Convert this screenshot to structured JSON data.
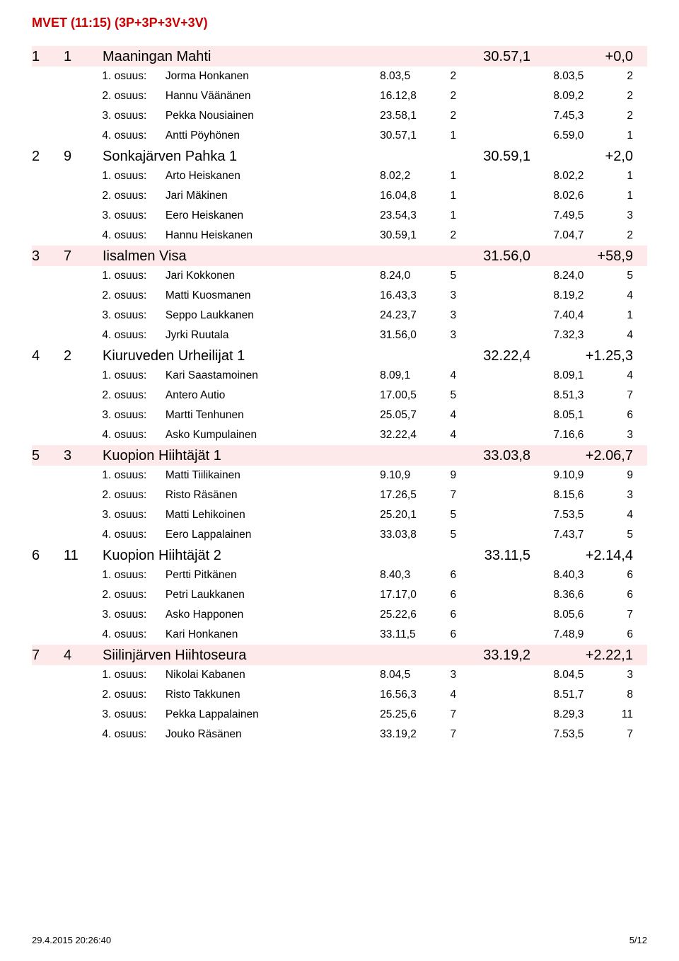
{
  "title": "MVET (11:15)  (3P+3P+3V+3V)",
  "colors": {
    "title": "#cc0000",
    "shade": "#fde9e9",
    "text": "#000000",
    "background": "#ffffff"
  },
  "teams": [
    {
      "rank": "1",
      "bib": "1",
      "name": "Maaningan Mahti",
      "time": "30.57,1",
      "diff": "+0,0",
      "legs": [
        {
          "leg": "1. osuus:",
          "name": "Jorma Honkanen",
          "t1": "8.03,5",
          "p1": "2",
          "t2": "8.03,5",
          "p2": "2"
        },
        {
          "leg": "2. osuus:",
          "name": "Hannu Väänänen",
          "t1": "16.12,8",
          "p1": "2",
          "t2": "8.09,2",
          "p2": "2"
        },
        {
          "leg": "3. osuus:",
          "name": "Pekka Nousiainen",
          "t1": "23.58,1",
          "p1": "2",
          "t2": "7.45,3",
          "p2": "2"
        },
        {
          "leg": "4. osuus:",
          "name": "Antti Pöyhönen",
          "t1": "30.57,1",
          "p1": "1",
          "t2": "6.59,0",
          "p2": "1"
        }
      ]
    },
    {
      "rank": "2",
      "bib": "9",
      "name": "Sonkajärven Pahka 1",
      "time": "30.59,1",
      "diff": "+2,0",
      "legs": [
        {
          "leg": "1. osuus:",
          "name": "Arto Heiskanen",
          "t1": "8.02,2",
          "p1": "1",
          "t2": "8.02,2",
          "p2": "1"
        },
        {
          "leg": "2. osuus:",
          "name": "Jari Mäkinen",
          "t1": "16.04,8",
          "p1": "1",
          "t2": "8.02,6",
          "p2": "1"
        },
        {
          "leg": "3. osuus:",
          "name": "Eero Heiskanen",
          "t1": "23.54,3",
          "p1": "1",
          "t2": "7.49,5",
          "p2": "3"
        },
        {
          "leg": "4. osuus:",
          "name": "Hannu Heiskanen",
          "t1": "30.59,1",
          "p1": "2",
          "t2": "7.04,7",
          "p2": "2"
        }
      ]
    },
    {
      "rank": "3",
      "bib": "7",
      "name": "Iisalmen Visa",
      "time": "31.56,0",
      "diff": "+58,9",
      "legs": [
        {
          "leg": "1. osuus:",
          "name": "Jari Kokkonen",
          "t1": "8.24,0",
          "p1": "5",
          "t2": "8.24,0",
          "p2": "5"
        },
        {
          "leg": "2. osuus:",
          "name": "Matti Kuosmanen",
          "t1": "16.43,3",
          "p1": "3",
          "t2": "8.19,2",
          "p2": "4"
        },
        {
          "leg": "3. osuus:",
          "name": "Seppo Laukkanen",
          "t1": "24.23,7",
          "p1": "3",
          "t2": "7.40,4",
          "p2": "1"
        },
        {
          "leg": "4. osuus:",
          "name": "Jyrki Ruutala",
          "t1": "31.56,0",
          "p1": "3",
          "t2": "7.32,3",
          "p2": "4"
        }
      ]
    },
    {
      "rank": "4",
      "bib": "2",
      "name": "Kiuruveden Urheilijat 1",
      "time": "32.22,4",
      "diff": "+1.25,3",
      "legs": [
        {
          "leg": "1. osuus:",
          "name": "Kari Saastamoinen",
          "t1": "8.09,1",
          "p1": "4",
          "t2": "8.09,1",
          "p2": "4"
        },
        {
          "leg": "2. osuus:",
          "name": "Antero Autio",
          "t1": "17.00,5",
          "p1": "5",
          "t2": "8.51,3",
          "p2": "7"
        },
        {
          "leg": "3. osuus:",
          "name": "Martti Tenhunen",
          "t1": "25.05,7",
          "p1": "4",
          "t2": "8.05,1",
          "p2": "6"
        },
        {
          "leg": "4. osuus:",
          "name": "Asko Kumpulainen",
          "t1": "32.22,4",
          "p1": "4",
          "t2": "7.16,6",
          "p2": "3"
        }
      ]
    },
    {
      "rank": "5",
      "bib": "3",
      "name": "Kuopion Hiihtäjät 1",
      "time": "33.03,8",
      "diff": "+2.06,7",
      "legs": [
        {
          "leg": "1. osuus:",
          "name": "Matti Tiilikainen",
          "t1": "9.10,9",
          "p1": "9",
          "t2": "9.10,9",
          "p2": "9"
        },
        {
          "leg": "2. osuus:",
          "name": "Risto Räsänen",
          "t1": "17.26,5",
          "p1": "7",
          "t2": "8.15,6",
          "p2": "3"
        },
        {
          "leg": "3. osuus:",
          "name": "Matti Lehikoinen",
          "t1": "25.20,1",
          "p1": "5",
          "t2": "7.53,5",
          "p2": "4"
        },
        {
          "leg": "4. osuus:",
          "name": "Eero Lappalainen",
          "t1": "33.03,8",
          "p1": "5",
          "t2": "7.43,7",
          "p2": "5"
        }
      ]
    },
    {
      "rank": "6",
      "bib": "11",
      "name": "Kuopion Hiihtäjät 2",
      "time": "33.11,5",
      "diff": "+2.14,4",
      "legs": [
        {
          "leg": "1. osuus:",
          "name": "Pertti Pitkänen",
          "t1": "8.40,3",
          "p1": "6",
          "t2": "8.40,3",
          "p2": "6"
        },
        {
          "leg": "2. osuus:",
          "name": "Petri Laukkanen",
          "t1": "17.17,0",
          "p1": "6",
          "t2": "8.36,6",
          "p2": "6"
        },
        {
          "leg": "3. osuus:",
          "name": "Asko Happonen",
          "t1": "25.22,6",
          "p1": "6",
          "t2": "8.05,6",
          "p2": "7"
        },
        {
          "leg": "4. osuus:",
          "name": "Kari Honkanen",
          "t1": "33.11,5",
          "p1": "6",
          "t2": "7.48,9",
          "p2": "6"
        }
      ]
    },
    {
      "rank": "7",
      "bib": "4",
      "name": "Siilinjärven Hiihtoseura",
      "time": "33.19,2",
      "diff": "+2.22,1",
      "legs": [
        {
          "leg": "1. osuus:",
          "name": "Nikolai Kabanen",
          "t1": "8.04,5",
          "p1": "3",
          "t2": "8.04,5",
          "p2": "3"
        },
        {
          "leg": "2. osuus:",
          "name": "Risto Takkunen",
          "t1": "16.56,3",
          "p1": "4",
          "t2": "8.51,7",
          "p2": "8"
        },
        {
          "leg": "3. osuus:",
          "name": "Pekka Lappalainen",
          "t1": "25.25,6",
          "p1": "7",
          "t2": "8.29,3",
          "p2": "11"
        },
        {
          "leg": "4. osuus:",
          "name": "Jouko Räsänen",
          "t1": "33.19,2",
          "p1": "7",
          "t2": "7.53,5",
          "p2": "7"
        }
      ]
    }
  ],
  "footer": {
    "left": "29.4.2015 20:26:40",
    "right": "5/12"
  }
}
